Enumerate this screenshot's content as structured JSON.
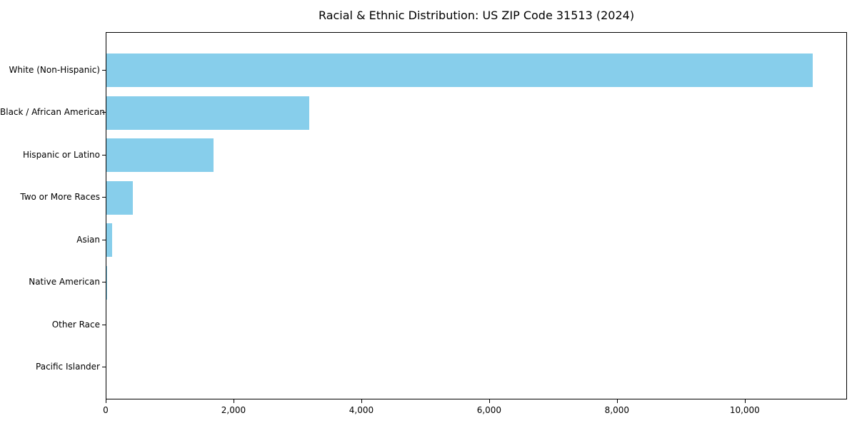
{
  "page": {
    "background": "#ffffff"
  },
  "chart_data": {
    "type": "bar",
    "orientation": "horizontal",
    "title": "Racial & Ethnic Distribution: US ZIP Code 31513 (2024)",
    "categories": [
      "White (Non-Hispanic)",
      "Black / African American",
      "Hispanic or Latino",
      "Two or More Races",
      "Asian",
      "Native American",
      "Other Race",
      "Pacific Islander"
    ],
    "values": [
      11050,
      3175,
      1680,
      410,
      90,
      15,
      0,
      0
    ],
    "xlabel": "",
    "ylabel": "",
    "xlim": [
      0,
      11600
    ],
    "xticks": [
      0,
      2000,
      4000,
      6000,
      8000,
      10000
    ],
    "xtick_labels": [
      "0",
      "2,000",
      "4,000",
      "6,000",
      "8,000",
      "10,000"
    ],
    "bar_color": "#87CEEB",
    "spine_color": "#000000",
    "text_color": "#000000",
    "grid": false,
    "legend": null
  }
}
